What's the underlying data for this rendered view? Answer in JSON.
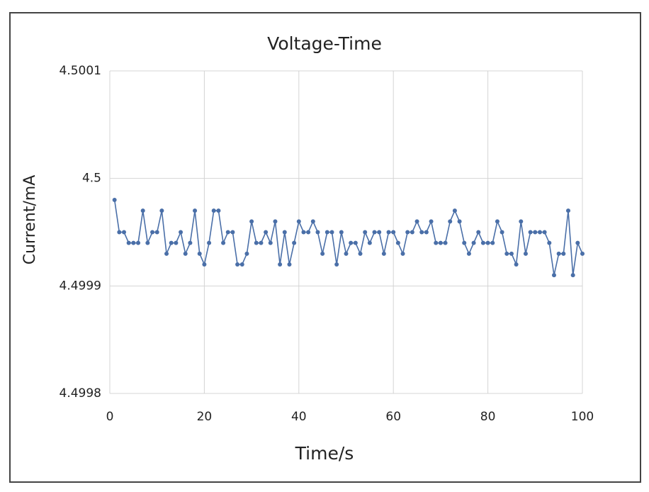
{
  "chart_data": {
    "type": "line",
    "title": "Voltage-Time",
    "x_label": "Time/s",
    "y_label": "Current/mA",
    "x": [
      1,
      2,
      3,
      4,
      5,
      6,
      7,
      8,
      9,
      10,
      11,
      12,
      13,
      14,
      15,
      16,
      17,
      18,
      19,
      20,
      21,
      22,
      23,
      24,
      25,
      26,
      27,
      28,
      29,
      30,
      31,
      32,
      33,
      34,
      35,
      36,
      37,
      38,
      39,
      40,
      41,
      42,
      43,
      44,
      45,
      46,
      47,
      48,
      49,
      50,
      51,
      52,
      53,
      54,
      55,
      56,
      57,
      58,
      59,
      60,
      61,
      62,
      63,
      64,
      65,
      66,
      67,
      68,
      69,
      70,
      71,
      72,
      73,
      74,
      75,
      76,
      77,
      78,
      79,
      80,
      81,
      82,
      83,
      84,
      85,
      86,
      87,
      88,
      89,
      90,
      91,
      92,
      93,
      94,
      95,
      96,
      97,
      98,
      99,
      100
    ],
    "series": [
      {
        "name": "Current",
        "color": "#4a6fa8",
        "values": [
          4.49998,
          4.49995,
          4.49995,
          4.49994,
          4.49994,
          4.49994,
          4.49997,
          4.49994,
          4.49995,
          4.49995,
          4.49997,
          4.49993,
          4.49994,
          4.49994,
          4.49995,
          4.49993,
          4.49994,
          4.49997,
          4.49993,
          4.49992,
          4.49994,
          4.49997,
          4.49997,
          4.49994,
          4.49995,
          4.49995,
          4.49992,
          4.49992,
          4.49993,
          4.49996,
          4.49994,
          4.49994,
          4.49995,
          4.49994,
          4.49996,
          4.49992,
          4.49995,
          4.49992,
          4.49994,
          4.49996,
          4.49995,
          4.49995,
          4.49996,
          4.49995,
          4.49993,
          4.49995,
          4.49995,
          4.49992,
          4.49995,
          4.49993,
          4.49994,
          4.49994,
          4.49993,
          4.49995,
          4.49994,
          4.49995,
          4.49995,
          4.49993,
          4.49995,
          4.49995,
          4.49994,
          4.49993,
          4.49995,
          4.49995,
          4.49996,
          4.49995,
          4.49995,
          4.49996,
          4.49994,
          4.49994,
          4.49994,
          4.49996,
          4.49997,
          4.49996,
          4.49994,
          4.49993,
          4.49994,
          4.49995,
          4.49994,
          4.49994,
          4.49994,
          4.49996,
          4.49995,
          4.49993,
          4.49993,
          4.49992,
          4.49996,
          4.49993,
          4.49995,
          4.49995,
          4.49995,
          4.49995,
          4.49994,
          4.49991,
          4.49993,
          4.49993,
          4.49997,
          4.49991,
          4.49994,
          4.49993
        ]
      }
    ],
    "xlim": [
      0,
      100
    ],
    "xticks": [
      0,
      20,
      40,
      60,
      80,
      100
    ],
    "ylim": [
      4.4998,
      4.5001
    ],
    "yticks": [
      4.4998,
      4.4999,
      4.5,
      4.5001
    ],
    "grid": true
  }
}
